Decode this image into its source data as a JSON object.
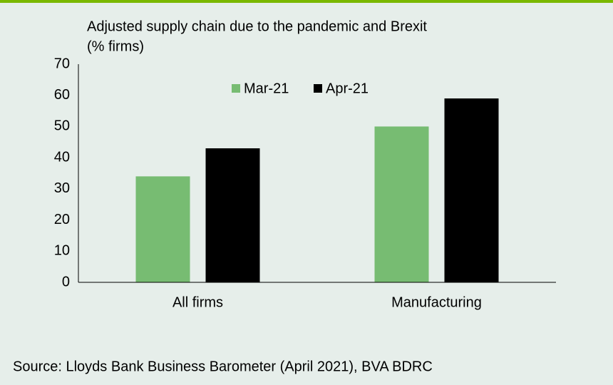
{
  "chart_data": {
    "type": "bar",
    "title": "Adjusted supply chain due to the pandemic and Brexit",
    "subtitle": "(% firms)",
    "categories": [
      "All firms",
      "Manufacturing"
    ],
    "series": [
      {
        "name": "Mar-21",
        "color": "#77bc72",
        "values": [
          34,
          50
        ]
      },
      {
        "name": "Apr-21",
        "color": "#000000",
        "values": [
          43,
          59
        ]
      }
    ],
    "ylim": [
      0,
      70
    ],
    "yticks": [
      0,
      10,
      20,
      30,
      40,
      50,
      60,
      70
    ],
    "grid": false,
    "legend": "top",
    "source": "Source: Lloyds Bank Business Barometer (April 2021), BVA BDRC"
  }
}
